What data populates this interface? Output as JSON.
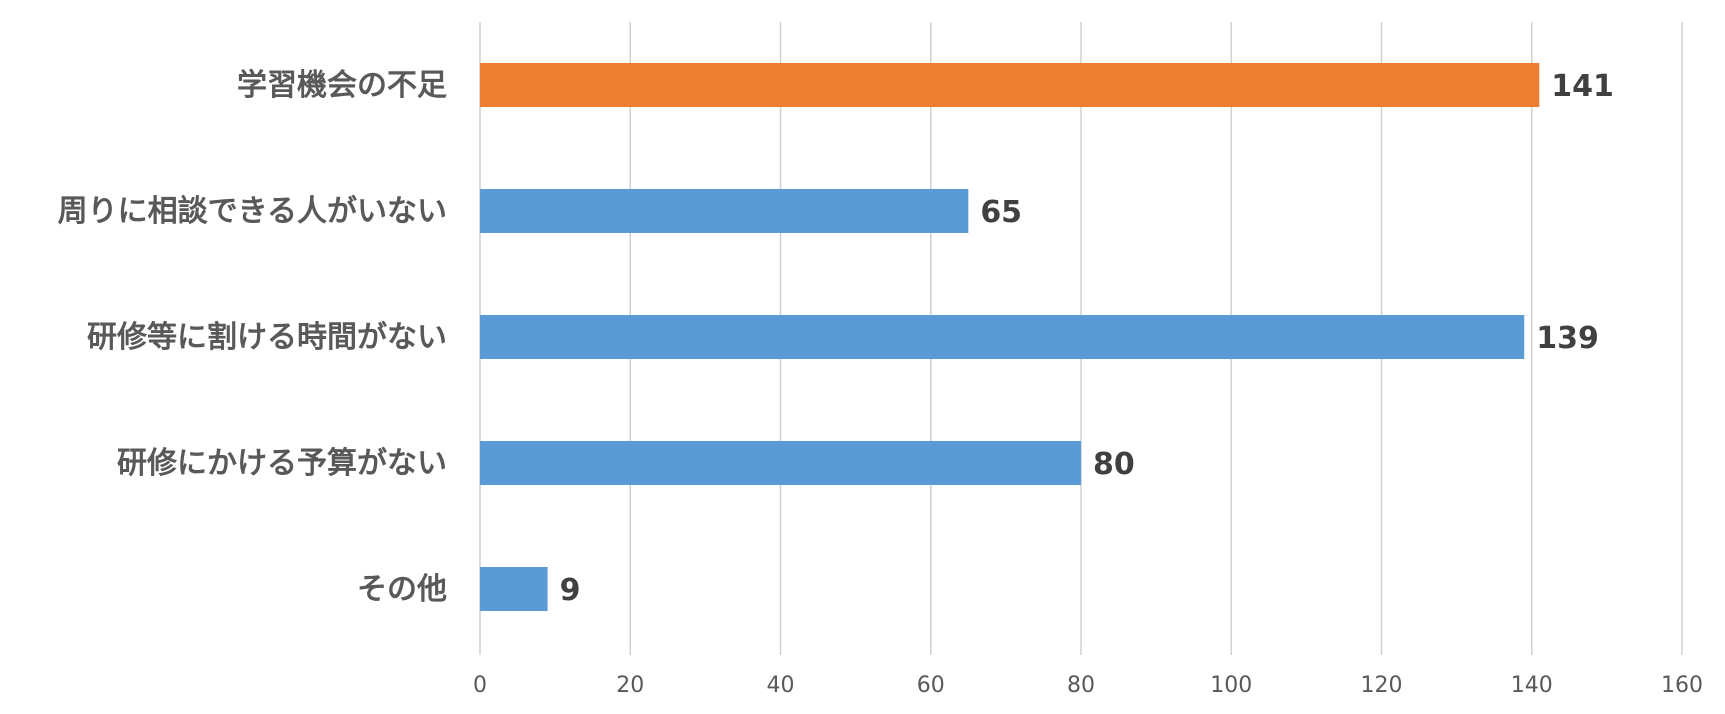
{
  "chart_data": {
    "type": "bar",
    "orientation": "horizontal",
    "categories": [
      "学習機会の不足",
      "周りに相談できる人がいない",
      "研修等に割ける時間がない",
      "研修にかける予算がない",
      "その他"
    ],
    "values": [
      141,
      65,
      139,
      80,
      9
    ],
    "bar_colors": [
      "#ED7D31",
      "#5B9BD5",
      "#5B9BD5",
      "#5B9BD5",
      "#5B9BD5"
    ],
    "xlim": [
      0,
      160
    ],
    "x_ticks": [
      0,
      20,
      40,
      60,
      80,
      100,
      120,
      140,
      160
    ],
    "grid": true,
    "data_labels": true
  }
}
